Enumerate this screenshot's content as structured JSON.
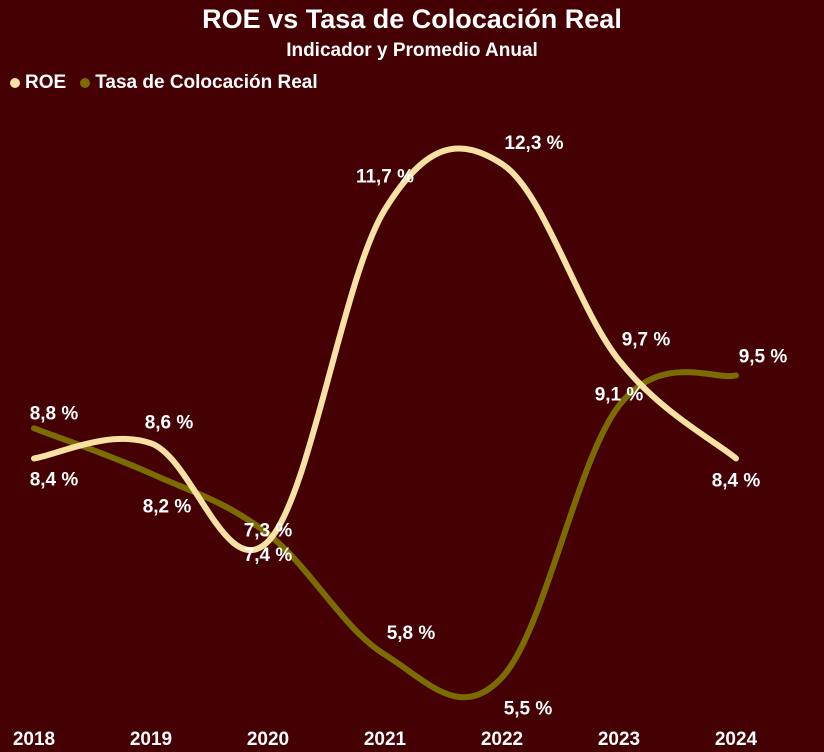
{
  "chart_data": {
    "type": "line",
    "title": "ROE vs Tasa de Colocación Real",
    "subtitle": "Indicador y Promedio Anual",
    "categories": [
      "2018",
      "2019",
      "2020",
      "2021",
      "2022",
      "2023",
      "2024"
    ],
    "legend_position": "top-left",
    "grid": false,
    "series": [
      {
        "name": "ROE",
        "color": "#f7e2a4",
        "values": [
          8.4,
          8.6,
          7.3,
          11.7,
          12.3,
          9.7,
          8.4
        ],
        "labels": [
          "8,4 %",
          "8,6 %",
          "7,3 %",
          "11,7 %",
          "12,3 %",
          "9,7 %",
          "8,4 %"
        ]
      },
      {
        "name": "Tasa de Colocación Real",
        "color": "#7a6c00",
        "values": [
          8.8,
          8.2,
          7.4,
          5.8,
          5.5,
          9.1,
          9.5
        ],
        "labels": [
          "8,8 %",
          "8,2 %",
          "7,4 %",
          "5,8 %",
          "5,5 %",
          "9,1 %",
          "9,5 %"
        ]
      }
    ]
  }
}
